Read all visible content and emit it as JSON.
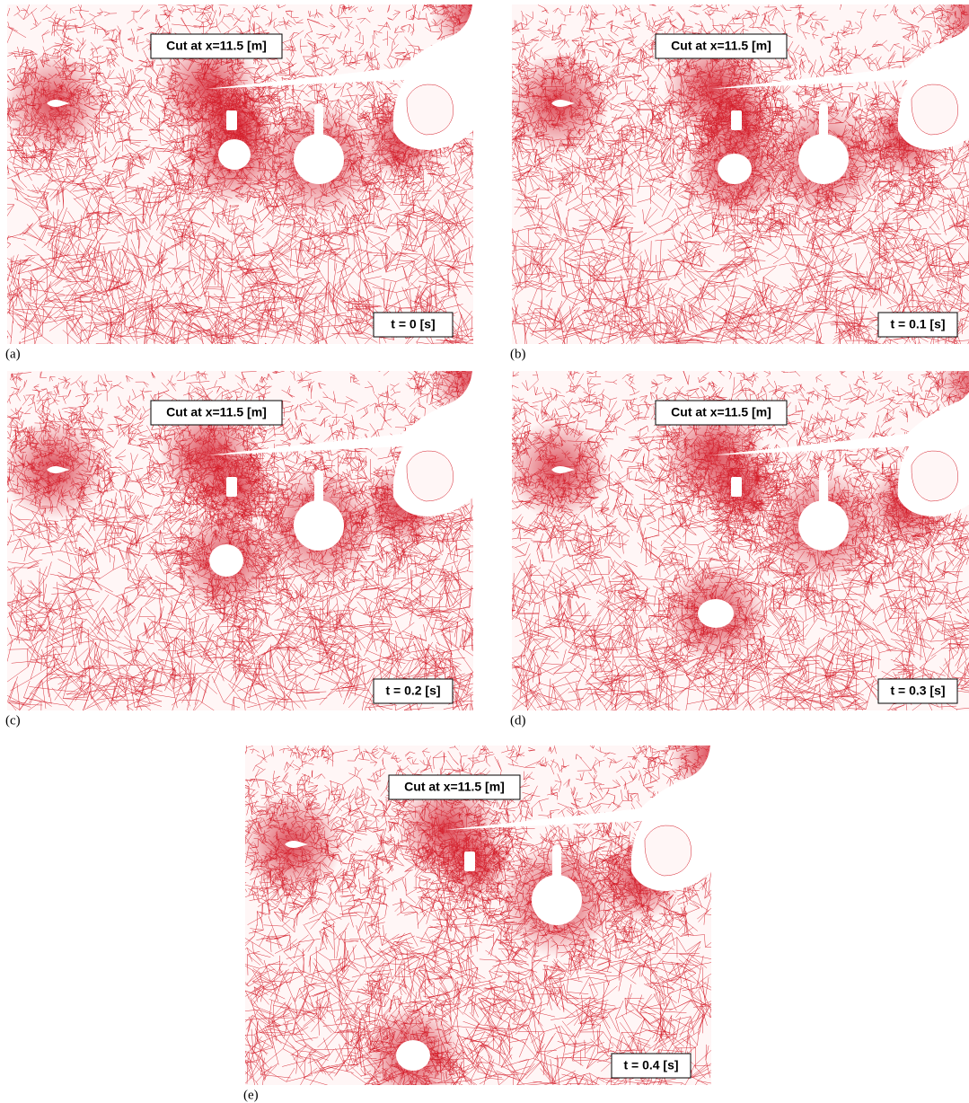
{
  "panels": [
    {
      "label": "(a)",
      "cut_label": "Cut at x=11.5 [m]",
      "time_label": "t = 0 [s]"
    },
    {
      "label": "(b)",
      "cut_label": "Cut at x=11.5 [m]",
      "time_label": "t = 0.1 [s]"
    },
    {
      "label": "(c)",
      "cut_label": "Cut at x=11.5 [m]",
      "time_label": "t = 0.2 [s]"
    },
    {
      "label": "(d)",
      "cut_label": "Cut at x=11.5 [m]",
      "time_label": "t = 0.3 [s]"
    },
    {
      "label": "(e)",
      "cut_label": "Cut at x=11.5 [m]",
      "time_label": "t = 0.4 [s]"
    }
  ]
}
